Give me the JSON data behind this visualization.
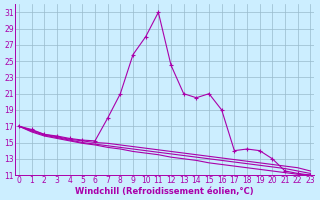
{
  "title": "",
  "xlabel": "Windchill (Refroidissement éolien,°C)",
  "bg_color": "#cceeff",
  "line_color": "#aa00aa",
  "grid_color": "#99bbcc",
  "x_values": [
    0,
    1,
    2,
    3,
    4,
    5,
    6,
    7,
    8,
    9,
    10,
    11,
    12,
    13,
    14,
    15,
    16,
    17,
    18,
    19,
    20,
    21,
    22,
    23
  ],
  "series_main": [
    17,
    16.6,
    16.0,
    15.8,
    15.5,
    15.3,
    15.2,
    18.0,
    21.0,
    25.8,
    28.0,
    31.0,
    24.5,
    21.0,
    20.5,
    21.0,
    19.0,
    14.0,
    14.2,
    14.0,
    13.0,
    11.5,
    11.2,
    11.0
  ],
  "series_flat": [
    [
      17.0,
      16.5,
      16.0,
      15.7,
      15.4,
      15.2,
      15.0,
      14.9,
      14.7,
      14.5,
      14.3,
      14.1,
      13.9,
      13.7,
      13.5,
      13.3,
      13.1,
      12.9,
      12.7,
      12.5,
      12.3,
      12.1,
      11.9,
      11.5
    ],
    [
      17.0,
      16.4,
      15.9,
      15.6,
      15.3,
      15.0,
      14.8,
      14.6,
      14.4,
      14.2,
      14.0,
      13.8,
      13.6,
      13.4,
      13.2,
      13.0,
      12.8,
      12.6,
      12.4,
      12.2,
      12.0,
      11.8,
      11.5,
      11.2
    ],
    [
      17.0,
      16.3,
      15.8,
      15.5,
      15.2,
      14.9,
      14.7,
      14.4,
      14.2,
      13.9,
      13.7,
      13.5,
      13.2,
      13.0,
      12.8,
      12.5,
      12.3,
      12.1,
      11.9,
      11.7,
      11.5,
      11.3,
      11.1,
      11.0
    ]
  ],
  "ylim": [
    11,
    32
  ],
  "yticks": [
    11,
    13,
    15,
    17,
    19,
    21,
    23,
    25,
    27,
    29,
    31
  ],
  "xticks": [
    0,
    1,
    2,
    3,
    4,
    5,
    6,
    7,
    8,
    9,
    10,
    11,
    12,
    13,
    14,
    15,
    16,
    17,
    18,
    19,
    20,
    21,
    22,
    23
  ],
  "markersize": 2.5,
  "linewidth": 0.8,
  "tick_fontsize": 5.5,
  "xlabel_fontsize": 6.0
}
